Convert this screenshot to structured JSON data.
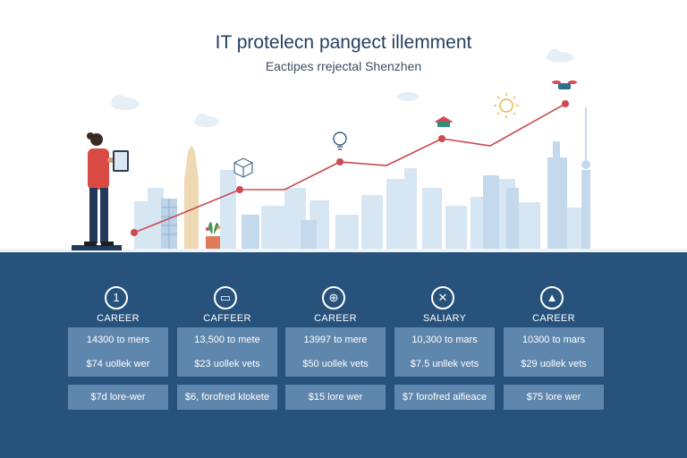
{
  "header": {
    "title": "IT protelecn pangect illemment",
    "subtitle": "Eactipes rrejectal Shenzhen"
  },
  "colors": {
    "band": "#27527c",
    "cell": "#5f87ad",
    "trend_line": "#cc4a52",
    "skyline": "#c9ddef"
  },
  "columns": [
    {
      "icon": "number-one-icon",
      "glyph": "1",
      "label": "CAREER",
      "row1": "14300 to mers",
      "row2": "$74 uollek wer",
      "row3": "$7d lore-wer"
    },
    {
      "icon": "monitor-icon",
      "glyph": "▭",
      "label": "CAFFEER",
      "row1": "13,500 to mete",
      "row2": "$23 uollek vets",
      "row3": "$6, forofred klokete"
    },
    {
      "icon": "globe-icon",
      "glyph": "⊕",
      "label": "CAREER",
      "row1": "13997 to mere",
      "row2": "$50 uollek vets",
      "row3": "$15 lore wer"
    },
    {
      "icon": "tools-icon",
      "glyph": "✕",
      "label": "SALIARY",
      "row1": "10,300 to mars",
      "row2": "$7.5 unllek vets",
      "row3": "$7 forofred aifieace"
    },
    {
      "icon": "cone-icon",
      "glyph": "▲",
      "label": "CAREER",
      "row1": "10300 to mars",
      "row2": "$29 uollek vets",
      "row3": "$75 lore wer"
    }
  ]
}
